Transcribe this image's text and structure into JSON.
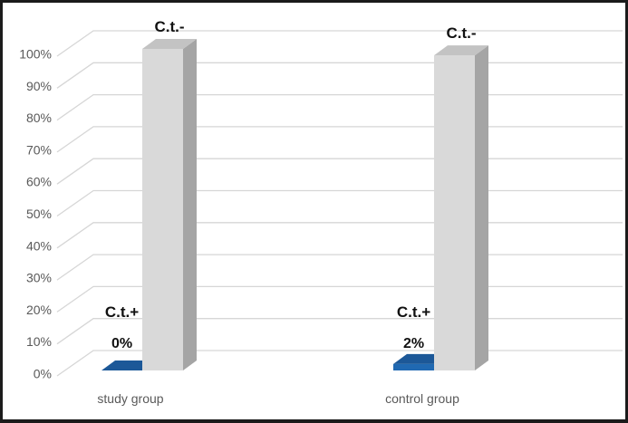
{
  "chart_data": {
    "type": "bar",
    "style": "3d-clustered-column",
    "title": "",
    "xlabel": "",
    "ylabel": "",
    "categories": [
      "study group",
      "control group"
    ],
    "series": [
      {
        "name": "C.t.+",
        "values": [
          0,
          2
        ],
        "data_labels": [
          "0%",
          "2%"
        ],
        "show_name_above_bar": true,
        "show_value_label": true,
        "color_front": "#2069b2",
        "color_top": "#1c5898",
        "color_side": "#164a80"
      },
      {
        "name": "C.t.-",
        "values": [
          100,
          98
        ],
        "data_labels": [
          "",
          ""
        ],
        "show_name_above_bar": true,
        "show_value_label": false,
        "color_front": "#d9d9d9",
        "color_top": "#c3c3c3",
        "color_side": "#a5a5a5"
      }
    ],
    "ylim": [
      0,
      100
    ],
    "yticks": [
      "0%",
      "10%",
      "20%",
      "30%",
      "40%",
      "50%",
      "60%",
      "70%",
      "80%",
      "90%",
      "100%"
    ],
    "grid": true,
    "legend": "none"
  },
  "colors": {
    "background": "#ffffff",
    "frame_border": "#1b1b1b",
    "gridline": "#d6d6d6",
    "axis_text": "#595959",
    "data_label_text": "#111111"
  }
}
